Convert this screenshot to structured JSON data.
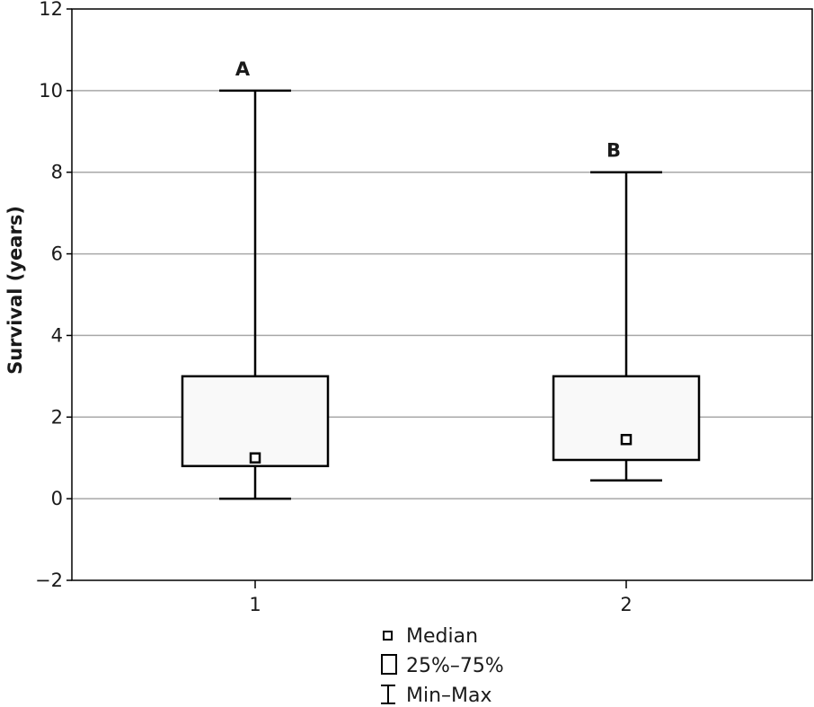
{
  "chart_data": {
    "type": "box",
    "ylabel": "Survival (years)",
    "xlabel": "",
    "ylim": [
      -2,
      12
    ],
    "yticks": [
      -2,
      0,
      2,
      4,
      6,
      8,
      10,
      12
    ],
    "ytick_labels": [
      "−2",
      "0",
      "2",
      "4",
      "6",
      "8",
      "10",
      "12"
    ],
    "categories": [
      "1",
      "2"
    ],
    "grid": "horizontal",
    "boxes": [
      {
        "category": "1",
        "label": "A",
        "min": 0,
        "q1": 0.8,
        "median": 1.0,
        "q3": 3.0,
        "max": 10
      },
      {
        "category": "2",
        "label": "B",
        "min": 0.45,
        "q1": 0.95,
        "median": 1.45,
        "q3": 3.0,
        "max": 8
      }
    ],
    "legend": {
      "position": "bottom",
      "entries": [
        {
          "symbol": "median-square",
          "label": "Median"
        },
        {
          "symbol": "box",
          "label": "25%–75%"
        },
        {
          "symbol": "whisker",
          "label": "Min–Max"
        }
      ]
    },
    "colors": {
      "box_fill": "#f9f9f9",
      "stroke": "#000000",
      "grid": "#a8a8a8"
    }
  }
}
